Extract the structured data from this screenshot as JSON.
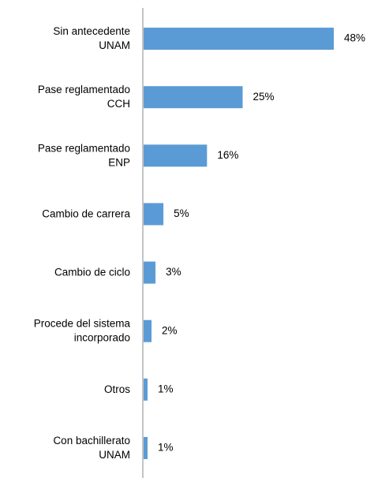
{
  "chart_data": {
    "type": "barh",
    "categories": [
      "Sin antecedente\nUNAM",
      "Pase reglamentado\nCCH",
      "Pase reglamentado\nENP",
      "Cambio de carrera",
      "Cambio de ciclo",
      "Procede del sistema\nincorporado",
      "Otros",
      "Con bachillerato\nUNAM"
    ],
    "values": [
      48,
      25,
      16,
      5,
      3,
      2,
      1,
      1
    ],
    "value_labels": [
      "48%",
      "25%",
      "16%",
      "5%",
      "3%",
      "2%",
      "1%",
      "1%"
    ],
    "color": "#5b9bd5"
  }
}
